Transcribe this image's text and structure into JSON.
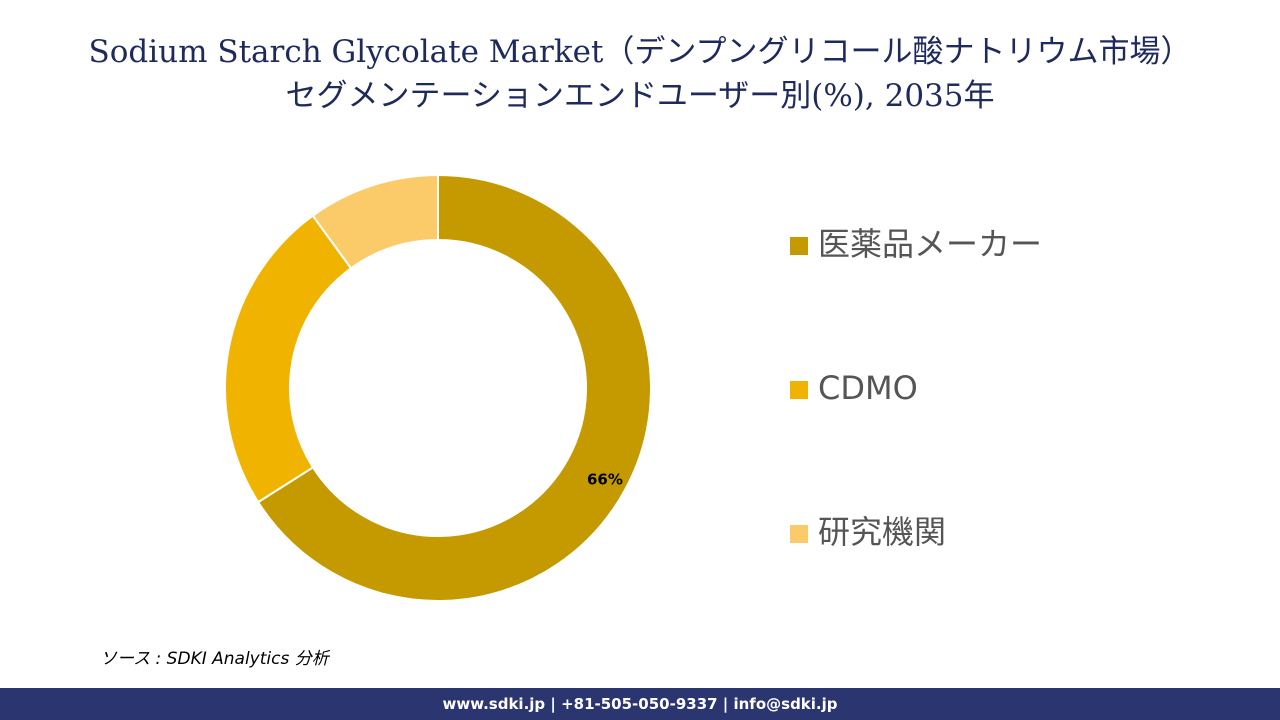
{
  "chart_data": {
    "type": "donut",
    "title_lines": [
      "Sodium Starch Glycolate Market（デンプングリコール酸ナトリウム市場）",
      "セグメンテーションエンドユーザー別(%), 2035年"
    ],
    "categories": [
      "医薬品メーカー",
      "CDMO",
      "研究機関"
    ],
    "values": [
      66,
      24,
      10
    ],
    "value_labels": [
      "66%",
      null,
      null
    ],
    "colors": [
      "#c49a00",
      "#f0b400",
      "#fbcb6a"
    ],
    "legend": "right"
  },
  "source": "ソース : SDKI Analytics  分析",
  "footer": "www.sdki.jp | +81-505-050-9337 | info@sdki.jp"
}
